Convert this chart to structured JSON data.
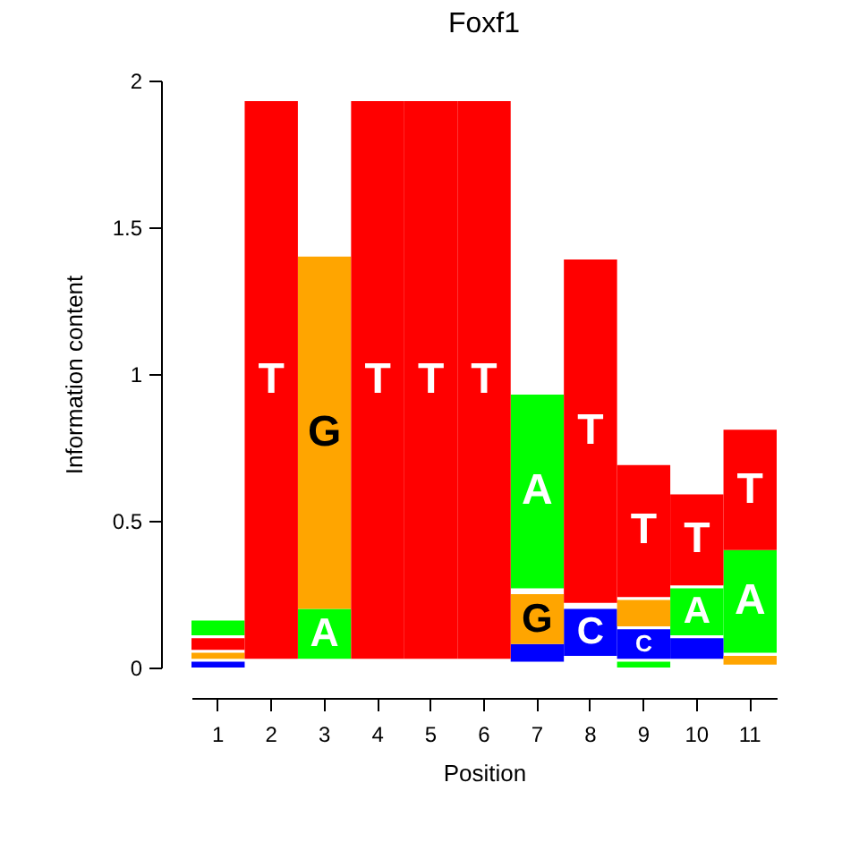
{
  "chart_data": {
    "type": "bar",
    "title": "Foxf1",
    "xlabel": "Position",
    "ylabel": "Information content",
    "categories": [
      "1",
      "2",
      "3",
      "4",
      "5",
      "6",
      "7",
      "8",
      "9",
      "10",
      "11"
    ],
    "ylim": [
      0,
      2
    ],
    "yticks": [
      0,
      0.5,
      1,
      1.5,
      2
    ],
    "series": [
      {
        "name": "A",
        "color": "#00ff00",
        "base": [
          0.11,
          null,
          0.03,
          null,
          null,
          null,
          0.27,
          null,
          0.0,
          0.11,
          0.05
        ],
        "values": [
          0.05,
          null,
          0.17,
          null,
          null,
          null,
          0.66,
          null,
          0.02,
          0.16,
          0.35
        ]
      },
      {
        "name": "C",
        "color": "#0000ff",
        "base": [
          0.0,
          null,
          null,
          null,
          null,
          null,
          0.02,
          0.04,
          0.03,
          0.03,
          null
        ],
        "values": [
          0.02,
          null,
          null,
          null,
          null,
          null,
          0.06,
          0.16,
          0.1,
          0.07,
          null
        ]
      },
      {
        "name": "G",
        "color": "#ffa500",
        "base": [
          0.03,
          null,
          0.2,
          null,
          null,
          null,
          0.08,
          null,
          0.14,
          null,
          0.01
        ],
        "values": [
          0.02,
          null,
          1.2,
          null,
          null,
          null,
          0.17,
          null,
          0.09,
          null,
          0.03
        ]
      },
      {
        "name": "T",
        "color": "#ff0000",
        "base": [
          0.06,
          0.03,
          null,
          0.03,
          0.03,
          0.03,
          null,
          0.22,
          0.24,
          0.28,
          0.4
        ],
        "values": [
          0.04,
          1.9,
          null,
          1.9,
          1.9,
          1.9,
          null,
          1.17,
          0.45,
          0.31,
          0.41
        ]
      }
    ]
  }
}
